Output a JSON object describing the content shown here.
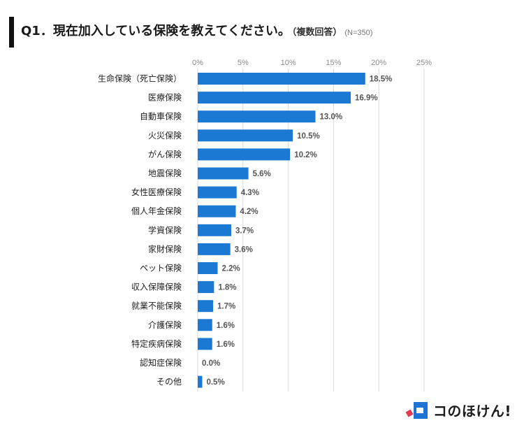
{
  "header": {
    "title": "Q1．現在加入している保険を教えてください。",
    "subtitle": "（複数回答）",
    "sample": "(N=350)"
  },
  "brand": {
    "name": "コのほけん!"
  },
  "colors": {
    "bar": "#1b79d4",
    "brand_blue": "#1f73d4",
    "brand_red": "#e23b4f",
    "grid": "#d9d9d9",
    "tick_text": "#8a8a8a",
    "label_text": "#222222",
    "value_text": "#555555"
  },
  "chart_data": {
    "type": "bar",
    "orientation": "horizontal",
    "categories": [
      "生命保険（死亡保険）",
      "医療保険",
      "自動車保険",
      "火災保険",
      "がん保険",
      "地震保険",
      "女性医療保険",
      "個人年金保険",
      "学資保険",
      "家財保険",
      "ペット保険",
      "収入保障保険",
      "就業不能保険",
      "介護保険",
      "特定疾病保険",
      "認知症保険",
      "その他"
    ],
    "values": [
      18.5,
      16.9,
      13.0,
      10.5,
      10.2,
      5.6,
      4.3,
      4.2,
      3.7,
      3.6,
      2.2,
      1.8,
      1.7,
      1.6,
      1.6,
      0.0,
      0.5
    ],
    "value_labels": [
      "18.5%",
      "16.9%",
      "13.0%",
      "10.5%",
      "10.2%",
      "5.6%",
      "4.3%",
      "4.2%",
      "3.7%",
      "3.6%",
      "2.2%",
      "1.8%",
      "1.7%",
      "1.6%",
      "1.6%",
      "0.0%",
      "0.5%"
    ],
    "ticks": [
      0,
      5,
      10,
      15,
      20,
      25
    ],
    "tick_labels": [
      "0%",
      "5%",
      "10%",
      "15%",
      "20%",
      "25%"
    ],
    "xlim": [
      0,
      25
    ],
    "axis_position": "top",
    "grid": true,
    "legend": "none"
  }
}
